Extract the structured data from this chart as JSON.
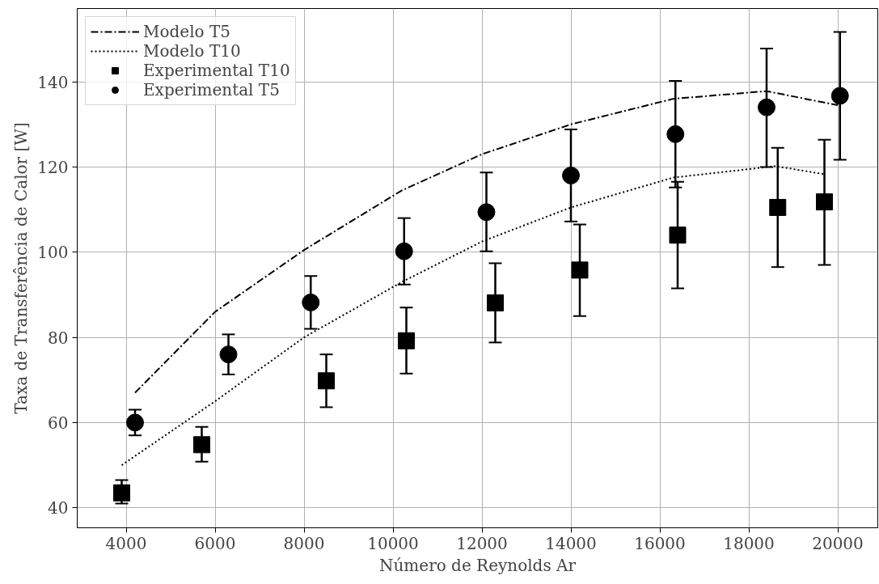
{
  "chart_data": {
    "type": "line",
    "xlabel": "Número de Reynolds Ar",
    "ylabel": "Taxa de Transferência de Calor [W]",
    "xlim": [
      2900,
      20900
    ],
    "ylim": [
      35.3,
      157.2
    ],
    "xticks": [
      4000,
      6000,
      8000,
      10000,
      12000,
      14000,
      16000,
      18000,
      20000
    ],
    "yticks": [
      40,
      60,
      80,
      100,
      120,
      140
    ],
    "grid": true,
    "legend": "top left",
    "series": [
      {
        "name": "Modelo T5",
        "line_style": "dashdot",
        "marker": "none",
        "color": "#000000",
        "x": [
          4200,
          6000,
          8000,
          10200,
          12000,
          14000,
          16300,
          18400,
          20000
        ],
        "values": [
          67,
          86,
          100.5,
          114.5,
          123,
          130,
          136,
          137.8,
          134.5
        ]
      },
      {
        "name": "Modelo T10",
        "line_style": "dotted",
        "marker": "none",
        "color": "#000000",
        "x": [
          3900,
          6000,
          8000,
          10200,
          12000,
          14000,
          16300,
          18600,
          19700
        ],
        "values": [
          50,
          65,
          80,
          93,
          102.5,
          110.5,
          117.5,
          120.2,
          118.3
        ]
      },
      {
        "name": "Experimental T10",
        "type": "scatter",
        "marker": "square",
        "color": "#000000",
        "x": [
          3900,
          5700,
          8500,
          10300,
          12300,
          14200,
          16400,
          18650,
          19700
        ],
        "values": [
          43.5,
          54.8,
          69.8,
          79.2,
          88.1,
          95.8,
          104,
          110.5,
          111.8
        ],
        "errors": [
          [
            41,
            46.5
          ],
          [
            50.8,
            59
          ],
          [
            63.6,
            76
          ],
          [
            71.5,
            87
          ],
          [
            78.8,
            97.4
          ],
          [
            85,
            106.5
          ],
          [
            91.5,
            116.5
          ],
          [
            96.5,
            124.5
          ],
          [
            97,
            126.4
          ]
        ]
      },
      {
        "name": "Experimental T5",
        "type": "scatter",
        "marker": "circle",
        "color": "#000000",
        "x": [
          4200,
          6300,
          8150,
          10250,
          12100,
          14000,
          16350,
          18400,
          20050
        ],
        "values": [
          60,
          76,
          88.2,
          100.2,
          109.4,
          118,
          127.7,
          134,
          136.7
        ],
        "errors": [
          [
            57,
            63
          ],
          [
            71.3,
            80.7
          ],
          [
            82,
            94.4
          ],
          [
            92.4,
            108
          ],
          [
            100.2,
            118.7
          ],
          [
            107.2,
            128.8
          ],
          [
            115.2,
            140.2
          ],
          [
            120,
            147.8
          ],
          [
            121.7,
            151.7
          ]
        ]
      }
    ]
  }
}
